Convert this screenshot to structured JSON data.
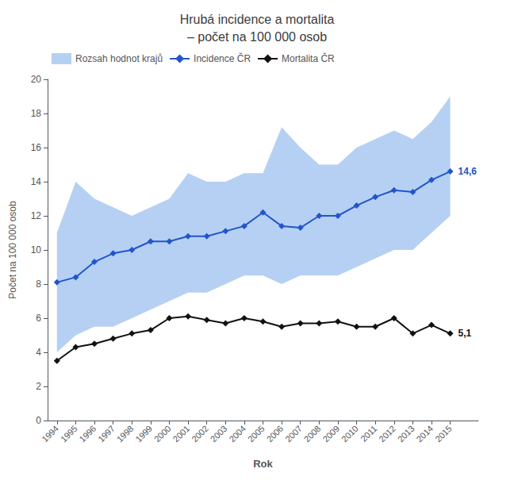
{
  "chart_data": {
    "type": "line",
    "title": "Hrubá incidence a mortalita\n– počet na 100 000 osob",
    "xlabel": "Rok",
    "ylabel": "Počet na 100 000 osob",
    "x": [
      1994,
      1995,
      1996,
      1997,
      1998,
      1999,
      2000,
      2001,
      2002,
      2003,
      2004,
      2005,
      2006,
      2007,
      2008,
      2009,
      2010,
      2011,
      2012,
      2013,
      2014,
      2015
    ],
    "xlim": [
      1993.5,
      2016.5
    ],
    "xticks": [
      1994,
      1995,
      1996,
      1997,
      1998,
      1999,
      2000,
      2001,
      2002,
      2003,
      2004,
      2005,
      2006,
      2007,
      2008,
      2009,
      2010,
      2011,
      2012,
      2013,
      2014,
      2015
    ],
    "ylim": [
      0,
      20
    ],
    "yticks": [
      0,
      2,
      4,
      6,
      8,
      10,
      12,
      14,
      16,
      18,
      20
    ],
    "grid": false,
    "legend": "upper left",
    "series": [
      {
        "name": "Rozsah hodnot krajů",
        "type": "range",
        "color": "#a8c8f0",
        "low": [
          4.0,
          5.0,
          5.5,
          5.5,
          6.0,
          6.5,
          7.0,
          7.5,
          7.5,
          8.0,
          8.5,
          8.5,
          8.0,
          8.5,
          8.5,
          8.5,
          9.0,
          9.5,
          10.0,
          10.0,
          11.0,
          12.0
        ],
        "high": [
          11.0,
          14.0,
          13.0,
          12.5,
          12.0,
          12.5,
          13.0,
          14.5,
          14.0,
          14.0,
          14.5,
          14.5,
          17.2,
          16.0,
          15.0,
          15.0,
          16.0,
          16.5,
          17.0,
          16.5,
          17.5,
          19.0
        ]
      },
      {
        "name": "Incidence ČR",
        "type": "line",
        "color": "#2255cc",
        "marker": "diamond",
        "values": [
          8.1,
          8.4,
          9.3,
          9.8,
          10.0,
          10.5,
          10.5,
          10.8,
          10.8,
          11.1,
          11.4,
          12.2,
          11.4,
          11.3,
          12.0,
          12.0,
          12.6,
          13.1,
          13.5,
          13.4,
          14.1,
          14.6
        ]
      },
      {
        "name": "Mortalita ČR",
        "type": "line",
        "color": "#111111",
        "marker": "diamond",
        "values": [
          3.5,
          4.3,
          4.5,
          4.8,
          5.1,
          5.3,
          6.0,
          6.1,
          5.9,
          5.7,
          6.0,
          5.8,
          5.5,
          5.7,
          5.7,
          5.8,
          5.5,
          5.5,
          6.0,
          5.1,
          5.6,
          5.1
        ]
      }
    ],
    "annotations": [
      {
        "text": "14,6",
        "x": 2015,
        "y": 14.6,
        "series": "Incidence ČR"
      },
      {
        "text": "5,1",
        "x": 2015,
        "y": 5.1,
        "series": "Mortalita ČR"
      }
    ]
  }
}
